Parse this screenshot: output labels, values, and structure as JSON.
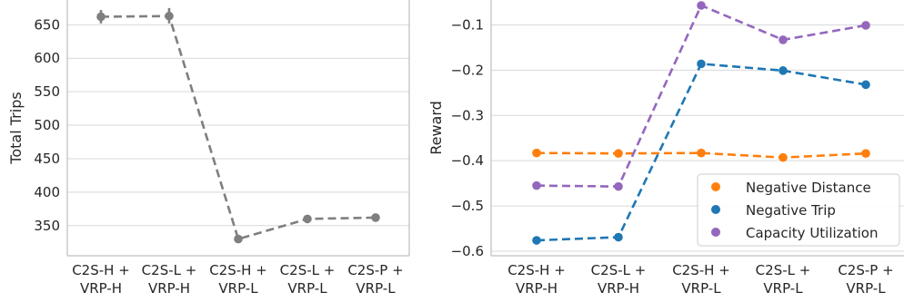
{
  "colors": {
    "gray": "#7f7f7f",
    "orange": "#ff7f0e",
    "blue": "#1f77b4",
    "purple": "#9467bd",
    "grid": "#d9d9d9",
    "axis": "#bfbfbf"
  },
  "chart_data": [
    {
      "type": "line",
      "title": "",
      "xlabel": "",
      "ylabel": "Total Trips",
      "categories": [
        [
          "C2S-H +",
          "VRP-H"
        ],
        [
          "C2S-L +",
          "VRP-H"
        ],
        [
          "C2S-H +",
          "VRP-L"
        ],
        [
          "C2S-L +",
          "VRP-L"
        ],
        [
          "C2S-P +",
          "VRP-L"
        ]
      ],
      "yticks": [
        350,
        400,
        450,
        500,
        550,
        600,
        650
      ],
      "ylim": [
        305,
        687
      ],
      "grid": true,
      "legend": "none",
      "series": [
        {
          "values": [
            662,
            663,
            330,
            360,
            362
          ],
          "error_low": [
            652,
            652,
            327,
            355,
            358
          ],
          "error_high": [
            672,
            675,
            334,
            365,
            366
          ]
        }
      ]
    },
    {
      "type": "line",
      "title": "",
      "xlabel": "",
      "ylabel": "Reward",
      "categories": [
        [
          "C2S-H +",
          "VRP-H"
        ],
        [
          "C2S-L +",
          "VRP-H"
        ],
        [
          "C2S-H +",
          "VRP-L"
        ],
        [
          "C2S-L +",
          "VRP-L"
        ],
        [
          "C2S-P +",
          "VRP-L"
        ]
      ],
      "yticks": [
        -0.6,
        -0.5,
        -0.4,
        -0.3,
        -0.2,
        -0.1
      ],
      "ytick_labels": [
        "−0.6",
        "−0.5",
        "−0.4",
        "−0.3",
        "−0.2",
        "−0.1"
      ],
      "ylim": [
        -0.61,
        -0.045
      ],
      "grid": true,
      "legend": "bottom-right",
      "series": [
        {
          "name": "Negative Distance",
          "values": [
            -0.383,
            -0.384,
            -0.383,
            -0.393,
            -0.384
          ]
        },
        {
          "name": "Negative Trip",
          "values": [
            -0.576,
            -0.569,
            -0.186,
            -0.201,
            -0.232
          ]
        },
        {
          "name": "Capacity Utilization",
          "values": [
            -0.455,
            -0.457,
            -0.057,
            -0.133,
            -0.101
          ]
        }
      ]
    }
  ]
}
